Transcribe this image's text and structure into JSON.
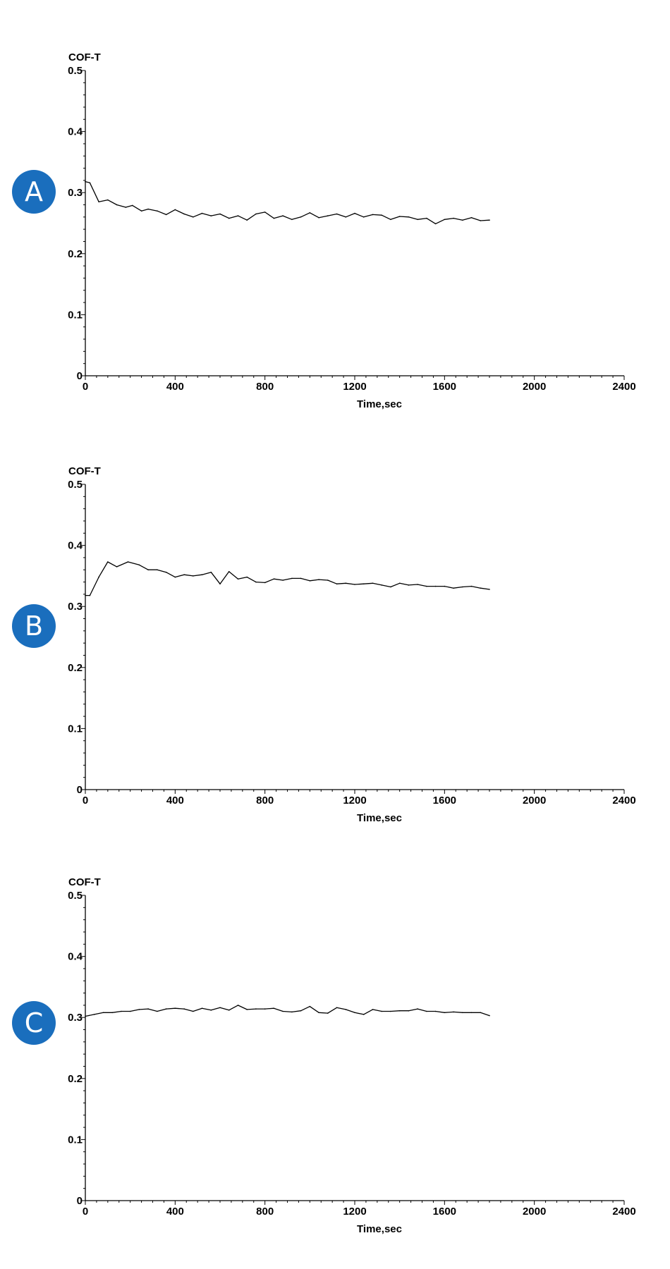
{
  "colors": {
    "badge": "#1a6ebd",
    "badge_text": "#ffffff",
    "line": "#000000"
  },
  "chart_data": [
    {
      "panel": "A",
      "type": "line",
      "ylabel": "COF-T",
      "xlabel": "Time,sec",
      "xlim": [
        0,
        2400
      ],
      "ylim": [
        0,
        0.5
      ],
      "xticks": [
        "0",
        "400",
        "800",
        "1200",
        "1600",
        "2000",
        "2400"
      ],
      "yticks": [
        "0",
        "0.1",
        "0.2",
        "0.3",
        "0.4",
        "0.5"
      ],
      "grid": false,
      "x": [
        0,
        20,
        60,
        100,
        140,
        180,
        210,
        250,
        280,
        320,
        360,
        400,
        440,
        480,
        520,
        560,
        600,
        640,
        680,
        720,
        760,
        800,
        840,
        880,
        920,
        960,
        1000,
        1040,
        1080,
        1120,
        1160,
        1200,
        1240,
        1280,
        1320,
        1360,
        1400,
        1440,
        1480,
        1520,
        1560,
        1600,
        1640,
        1680,
        1720,
        1760,
        1800
      ],
      "values": [
        0.318,
        0.316,
        0.285,
        0.288,
        0.28,
        0.276,
        0.279,
        0.27,
        0.273,
        0.27,
        0.264,
        0.272,
        0.265,
        0.26,
        0.266,
        0.262,
        0.265,
        0.258,
        0.262,
        0.255,
        0.265,
        0.268,
        0.258,
        0.262,
        0.256,
        0.26,
        0.267,
        0.259,
        0.262,
        0.265,
        0.26,
        0.266,
        0.26,
        0.264,
        0.263,
        0.256,
        0.261,
        0.26,
        0.256,
        0.258,
        0.249,
        0.256,
        0.258,
        0.255,
        0.259,
        0.254,
        0.255
      ]
    },
    {
      "panel": "B",
      "type": "line",
      "ylabel": "COF-T",
      "xlabel": "Time,sec",
      "xlim": [
        0,
        2400
      ],
      "ylim": [
        0,
        0.5
      ],
      "xticks": [
        "0",
        "400",
        "800",
        "1200",
        "1600",
        "2000",
        "2400"
      ],
      "yticks": [
        "0",
        "0.1",
        "0.2",
        "0.3",
        "0.4",
        "0.5"
      ],
      "grid": false,
      "x": [
        0,
        20,
        60,
        100,
        140,
        190,
        240,
        280,
        320,
        360,
        400,
        440,
        480,
        520,
        560,
        600,
        640,
        680,
        720,
        760,
        800,
        840,
        880,
        920,
        960,
        1000,
        1040,
        1080,
        1120,
        1160,
        1200,
        1240,
        1280,
        1320,
        1360,
        1400,
        1440,
        1480,
        1520,
        1560,
        1600,
        1640,
        1680,
        1720,
        1760,
        1800
      ],
      "values": [
        0.318,
        0.318,
        0.348,
        0.373,
        0.365,
        0.373,
        0.368,
        0.36,
        0.36,
        0.356,
        0.348,
        0.352,
        0.35,
        0.352,
        0.356,
        0.337,
        0.357,
        0.345,
        0.348,
        0.34,
        0.339,
        0.345,
        0.343,
        0.346,
        0.346,
        0.342,
        0.344,
        0.343,
        0.337,
        0.338,
        0.336,
        0.337,
        0.338,
        0.335,
        0.332,
        0.338,
        0.335,
        0.336,
        0.333,
        0.333,
        0.333,
        0.33,
        0.332,
        0.333,
        0.33,
        0.328
      ]
    },
    {
      "panel": "C",
      "type": "line",
      "ylabel": "COF-T",
      "xlabel": "Time,sec",
      "xlim": [
        0,
        2400
      ],
      "ylim": [
        0,
        0.5
      ],
      "xticks": [
        "0",
        "400",
        "800",
        "1200",
        "1600",
        "2000",
        "2400"
      ],
      "yticks": [
        "0",
        "0.1",
        "0.2",
        "0.3",
        "0.4",
        "0.5"
      ],
      "grid": false,
      "x": [
        0,
        40,
        80,
        120,
        160,
        200,
        240,
        280,
        320,
        360,
        400,
        440,
        480,
        520,
        560,
        600,
        640,
        680,
        720,
        760,
        800,
        840,
        880,
        920,
        960,
        1000,
        1040,
        1080,
        1120,
        1160,
        1200,
        1240,
        1280,
        1320,
        1360,
        1400,
        1440,
        1480,
        1520,
        1560,
        1600,
        1640,
        1680,
        1720,
        1760,
        1800
      ],
      "values": [
        0.302,
        0.305,
        0.308,
        0.308,
        0.31,
        0.31,
        0.313,
        0.314,
        0.31,
        0.314,
        0.315,
        0.314,
        0.31,
        0.315,
        0.312,
        0.316,
        0.312,
        0.32,
        0.313,
        0.314,
        0.314,
        0.315,
        0.31,
        0.309,
        0.311,
        0.318,
        0.308,
        0.307,
        0.316,
        0.313,
        0.308,
        0.305,
        0.313,
        0.31,
        0.31,
        0.311,
        0.311,
        0.314,
        0.31,
        0.31,
        0.308,
        0.309,
        0.308,
        0.308,
        0.308,
        0.303
      ]
    }
  ],
  "panels": [
    {
      "label": "A"
    },
    {
      "label": "B"
    },
    {
      "label": "C"
    }
  ]
}
